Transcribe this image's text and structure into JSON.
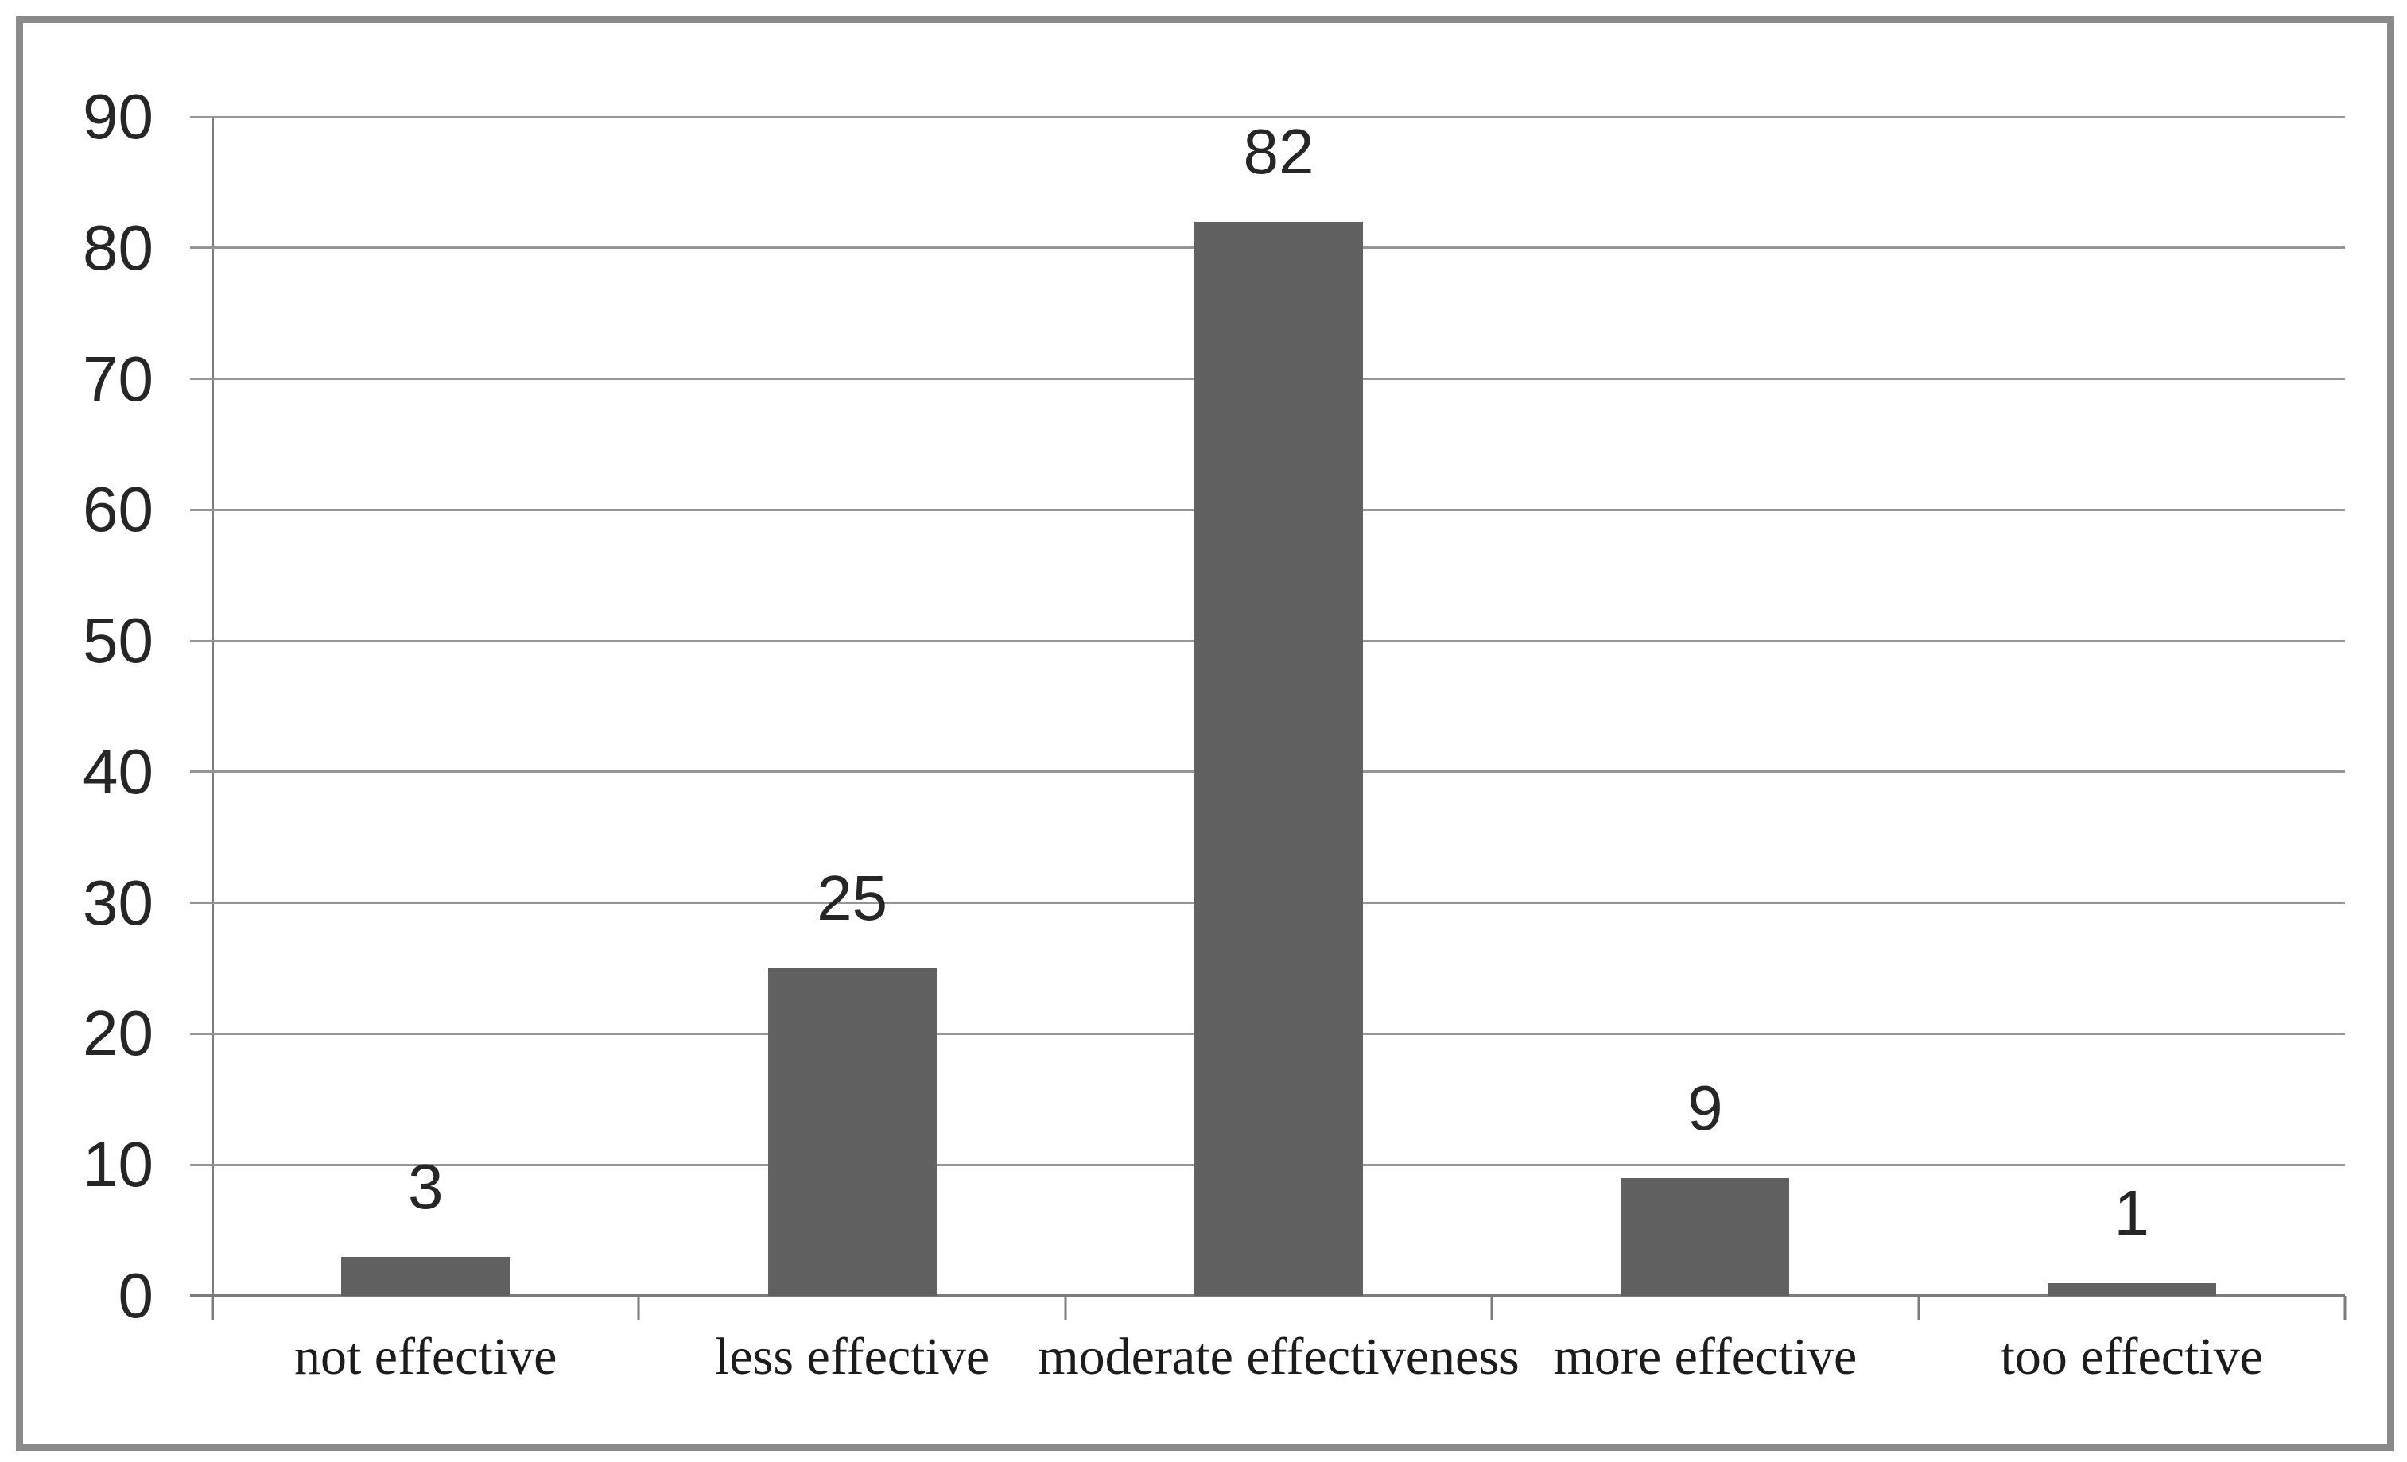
{
  "chart_data": {
    "type": "bar",
    "title": "",
    "xlabel": "",
    "ylabel": "",
    "categories": [
      "not effective",
      "less effective",
      "moderate effectiveness",
      "more effective",
      "too effective"
    ],
    "values": [
      3,
      25,
      82,
      9,
      1
    ],
    "data_labels": [
      "3",
      "25",
      "82",
      "9",
      "1"
    ],
    "y_ticks": [
      0,
      10,
      20,
      30,
      40,
      50,
      60,
      70,
      80,
      90
    ],
    "ylim": [
      0,
      90
    ],
    "grid": "horizontal",
    "legend": "none",
    "colors": {
      "bar": "#616161",
      "gridline": "#969696",
      "axis": "#7c7c7c",
      "frame_border": "#8a8a8a",
      "text": "#262626",
      "background": "#ffffff"
    }
  }
}
